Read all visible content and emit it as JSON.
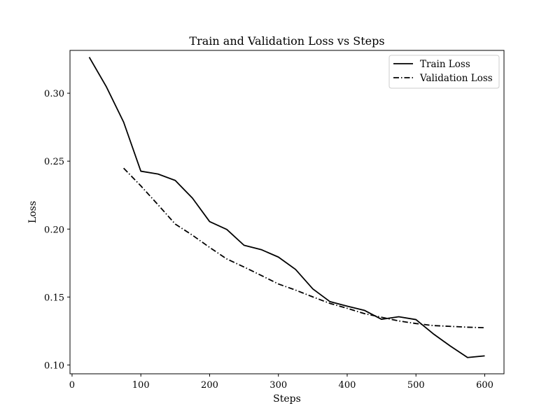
{
  "chart_data": {
    "type": "line",
    "title": "Train and Validation Loss vs Steps",
    "xlabel": "Steps",
    "ylabel": "Loss",
    "xlim": [
      -3,
      628
    ],
    "ylim": [
      0.0935,
      0.3315
    ],
    "xticks": [
      0,
      100,
      200,
      300,
      400,
      500,
      600
    ],
    "xtick_labels": [
      "0",
      "100",
      "200",
      "300",
      "400",
      "500",
      "600"
    ],
    "yticks": [
      0.1,
      0.15,
      0.2,
      0.25,
      0.3
    ],
    "ytick_labels": [
      "0.10",
      "0.15",
      "0.20",
      "0.25",
      "0.30"
    ],
    "grid": false,
    "legend_position": "top-right",
    "series": [
      {
        "name": "Train Loss",
        "line_style": "solid",
        "color": "#000000",
        "x": [
          25,
          50,
          75,
          100,
          125,
          150,
          175,
          200,
          225,
          250,
          275,
          300,
          325,
          350,
          375,
          400,
          425,
          450,
          475,
          500,
          525,
          550,
          575,
          600
        ],
        "y": [
          0.3265,
          0.3046,
          0.2787,
          0.2426,
          0.2405,
          0.2358,
          0.2228,
          0.2055,
          0.1997,
          0.1881,
          0.1849,
          0.1794,
          0.1703,
          0.156,
          0.1466,
          0.1433,
          0.1402,
          0.1336,
          0.1355,
          0.1334,
          0.123,
          0.1139,
          0.1055,
          0.1067
        ]
      },
      {
        "name": "Validation Loss",
        "line_style": "dashdot",
        "color": "#000000",
        "x": [
          75,
          100,
          125,
          150,
          175,
          200,
          225,
          250,
          275,
          300,
          325,
          350,
          375,
          400,
          425,
          450,
          475,
          500,
          525,
          550,
          575,
          600
        ],
        "y": [
          0.2448,
          0.2318,
          0.2179,
          0.2037,
          0.1955,
          0.1865,
          0.178,
          0.1721,
          0.1659,
          0.1596,
          0.1551,
          0.1501,
          0.1453,
          0.1417,
          0.1378,
          0.1351,
          0.1324,
          0.1305,
          0.129,
          0.1284,
          0.1278,
          0.1274
        ]
      }
    ]
  }
}
